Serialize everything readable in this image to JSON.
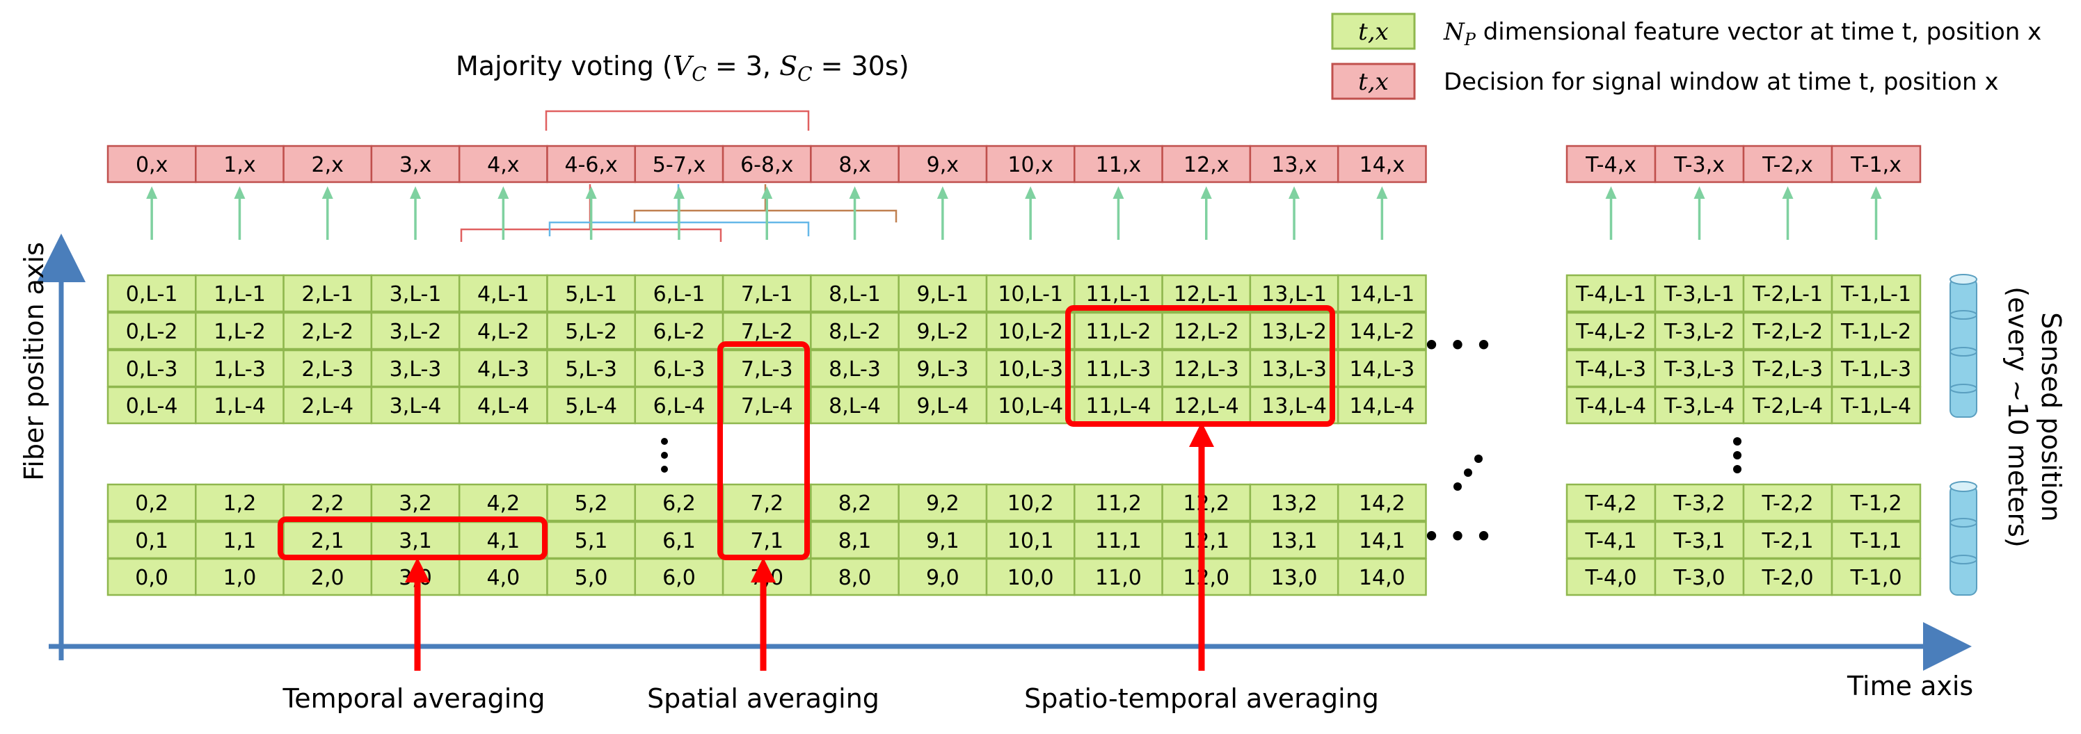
{
  "title": {
    "pre": "Majority voting (",
    "vc_sym": "V",
    "vc_sub": "C",
    "vc_val": " = 3, ",
    "sc_sym": "S",
    "sc_sub": "C",
    "sc_val": " = 30s)"
  },
  "legend": {
    "feature_box": "t,x",
    "feature_np": "N",
    "feature_np_sub": "P",
    "feature_desc": " dimensional feature vector at time t, position x",
    "decision_box": "t,x",
    "decision_desc": "Decision for signal window at time t, position x"
  },
  "decisions_left": [
    "0,x",
    "1,x",
    "2,x",
    "3,x",
    "4,x",
    "4-6,x",
    "5-7,x",
    "6-8,x",
    "8,x",
    "9,x",
    "10,x",
    "11,x",
    "12,x",
    "13,x",
    "14,x"
  ],
  "decisions_right": [
    "T-4,x",
    "T-3,x",
    "T-2,x",
    "T-1,x"
  ],
  "times_left": [
    "0",
    "1",
    "2",
    "3",
    "4",
    "5",
    "6",
    "7",
    "8",
    "9",
    "10",
    "11",
    "12",
    "13",
    "14"
  ],
  "times_right": [
    "T-4",
    "T-3",
    "T-2",
    "T-1"
  ],
  "positions_top": [
    "L-1",
    "L-2",
    "L-3",
    "L-4"
  ],
  "positions_bottom": [
    "2",
    "1",
    "0"
  ],
  "axes": {
    "y_label": "Fiber position axis",
    "x_label": "Time axis",
    "right_label_line1": "Sensed position",
    "right_label_line2": "(every ~10 meters)"
  },
  "annotations": {
    "temporal": "Temporal averaging",
    "spatial": "Spatial averaging",
    "spatiotemporal": "Spatio-temporal averaging"
  },
  "ellipsis": "• • •",
  "colors": {
    "cell_fill": "#d7ef9e",
    "cell_border": "#8fb74e",
    "decision_fill": "#f4b6b6",
    "decision_border": "#c0504d",
    "axis": "#4a7ebb",
    "highlight": "#ff0000",
    "arrow_green": "#7fd1a0"
  }
}
